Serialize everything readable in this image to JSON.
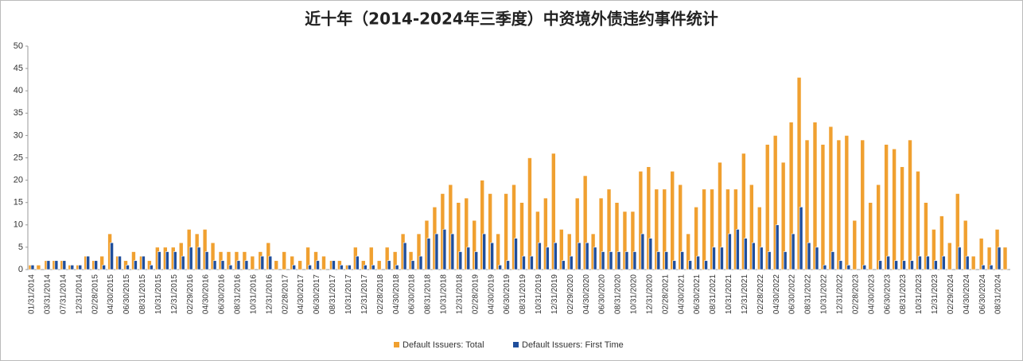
{
  "chart_data": {
    "type": "bar",
    "title": "近十年（2014-2024年三季度）中资境外债违约事件统计",
    "categories": [
      "01/31/2014",
      null,
      "03/31/2014",
      null,
      "07/31/2014",
      null,
      "12/31/2014",
      null,
      "02/28/2015",
      null,
      "04/30/2015",
      null,
      "06/30/2015",
      null,
      "08/31/2015",
      null,
      "10/31/2015",
      null,
      "12/31/2015",
      null,
      "02/29/2016",
      null,
      "04/30/2016",
      null,
      "06/30/2016",
      null,
      "08/31/2016",
      null,
      "10/31/2016",
      null,
      "12/31/2016",
      null,
      "02/28/2017",
      null,
      "04/30/2017",
      null,
      "06/30/2017",
      null,
      "08/31/2017",
      null,
      "10/31/2017",
      null,
      "12/31/2017",
      null,
      "02/28/2018",
      null,
      "04/30/2018",
      null,
      "06/30/2018",
      null,
      "08/31/2018",
      null,
      "10/31/2018",
      null,
      "12/31/2018",
      null,
      "02/28/2019",
      null,
      "04/30/2019",
      null,
      "06/30/2019",
      null,
      "08/31/2019",
      null,
      "10/31/2019",
      null,
      "12/31/2019",
      null,
      "02/29/2020",
      null,
      "04/30/2020",
      null,
      "06/30/2020",
      null,
      "08/31/2020",
      null,
      "10/31/2020",
      null,
      "12/31/2020",
      null,
      "02/28/2021",
      null,
      "04/30/2021",
      null,
      "06/30/2021",
      null,
      "08/31/2021",
      null,
      "10/31/2021",
      null,
      "12/31/2021",
      null,
      "02/28/2022",
      null,
      "04/30/2022",
      null,
      "06/30/2022",
      null,
      "08/31/2022",
      null,
      "10/31/2022",
      null,
      "12/31/2022",
      null,
      "02/28/2023",
      null,
      "04/30/2023",
      null,
      "06/30/2023",
      null,
      "08/31/2023",
      null,
      "10/31/2023",
      null,
      "12/31/2023",
      null,
      "02/29/2024",
      null,
      "04/30/2024",
      null,
      "06/30/2024",
      null,
      "08/31/2024",
      null
    ],
    "series": [
      {
        "name": "Default Issuers: Total",
        "color": "#f0a030",
        "values": [
          1,
          1,
          2,
          2,
          2,
          1,
          1,
          3,
          2,
          3,
          8,
          3,
          2,
          4,
          3,
          2,
          5,
          5,
          5,
          6,
          9,
          8,
          9,
          6,
          4,
          4,
          4,
          4,
          3,
          4,
          6,
          2,
          4,
          3,
          2,
          5,
          4,
          3,
          2,
          2,
          1,
          5,
          2,
          5,
          2,
          5,
          4,
          8,
          4,
          8,
          11,
          14,
          17,
          19,
          15,
          16,
          11,
          20,
          17,
          8,
          17,
          19,
          15,
          25,
          13,
          16,
          26,
          9,
          8,
          16,
          21,
          8,
          16,
          18,
          15,
          13,
          13,
          22,
          23,
          18,
          18,
          22,
          19,
          8,
          14,
          18,
          18,
          24,
          18,
          18,
          26,
          19,
          14,
          28,
          30,
          24,
          33,
          43,
          29,
          33,
          28,
          32,
          29,
          30,
          11,
          29,
          15,
          19,
          28,
          27,
          23,
          29,
          22,
          15,
          9,
          12,
          6,
          17,
          11,
          3,
          7,
          5,
          9,
          5
        ]
      },
      {
        "name": "Default Issuers: First Time",
        "color": "#1f4e9c",
        "values": [
          1,
          0,
          2,
          2,
          2,
          1,
          1,
          3,
          2,
          1,
          6,
          3,
          1,
          2,
          3,
          1,
          4,
          4,
          4,
          3,
          5,
          5,
          4,
          2,
          2,
          1,
          2,
          2,
          0,
          3,
          3,
          0,
          0,
          1,
          0,
          1,
          2,
          0,
          2,
          1,
          1,
          3,
          1,
          1,
          0,
          2,
          1,
          6,
          2,
          3,
          7,
          8,
          9,
          8,
          4,
          5,
          4,
          8,
          6,
          1,
          2,
          7,
          3,
          3,
          6,
          5,
          6,
          2,
          3,
          6,
          6,
          5,
          4,
          4,
          4,
          4,
          4,
          8,
          7,
          4,
          4,
          2,
          4,
          2,
          3,
          2,
          5,
          5,
          8,
          9,
          7,
          6,
          5,
          4,
          10,
          4,
          8,
          14,
          6,
          5,
          1,
          4,
          2,
          1,
          0,
          1,
          0,
          2,
          3,
          2,
          2,
          2,
          3,
          3,
          2,
          3,
          0,
          5,
          3,
          0,
          1,
          1,
          5,
          0
        ]
      }
    ],
    "ylim": [
      0,
      50
    ],
    "yticks": [
      0,
      5,
      10,
      15,
      20,
      25,
      30,
      35,
      40,
      45,
      50
    ],
    "grid": false,
    "legend": "bottom"
  }
}
